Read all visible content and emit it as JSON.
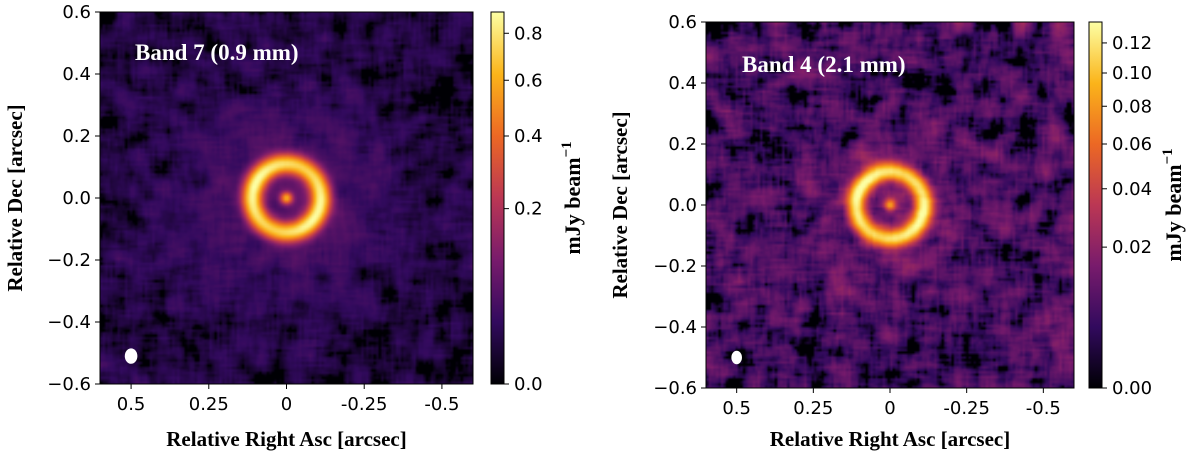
{
  "colors": {
    "cmap": [
      "#000004",
      "#320a5e",
      "#781b6c",
      "#bb3754",
      "#ec6824",
      "#fbb41a",
      "#fcffa4"
    ],
    "beam": "#ffffff"
  },
  "chart_data": [
    {
      "type": "heatmap",
      "title": "Band 7 (0.9 mm)",
      "xlabel": "Relative Right Asc [arcsec]",
      "ylabel": "Relative Dec [arcsec]",
      "xlim": [
        0.6,
        -0.6
      ],
      "ylim": [
        -0.6,
        0.6
      ],
      "xticks": [
        0.5,
        0.25,
        0,
        -0.25,
        -0.5
      ],
      "xtick_labels": [
        "0.5",
        "0.25",
        "0",
        "-0.25",
        "-0.5"
      ],
      "yticks": [
        0.6,
        0.4,
        0.2,
        0.0,
        -0.2,
        -0.4,
        -0.6
      ],
      "ytick_labels": [
        "0.6",
        "0.4",
        "0.2",
        "0.0",
        "−0.2",
        "−0.4",
        "−0.6"
      ],
      "colorbar": {
        "label": "mJy beam",
        "label_exp": "−1",
        "vmin": 0.0,
        "vmax": 0.9,
        "scale": "sqrt",
        "ticks": [
          0.0,
          0.2,
          0.4,
          0.6,
          0.8
        ],
        "tick_labels": [
          "0.0",
          "0.2",
          "0.4",
          "0.6",
          "0.8"
        ]
      },
      "ring": {
        "radius_arcsec": 0.11,
        "width_arcsec": 0.048,
        "peak": 0.85,
        "center_peak": 0.55,
        "noise_rms": 0.018
      },
      "beam": {
        "x_arcsec": 0.5,
        "y_arcsec": -0.51,
        "major_arcsec": 0.045,
        "minor_arcsec": 0.035
      }
    },
    {
      "type": "heatmap",
      "title": "Band 4 (2.1 mm)",
      "xlabel": "Relative Right Asc [arcsec]",
      "ylabel": "Relative Dec [arcsec]",
      "xlim": [
        0.6,
        -0.6
      ],
      "ylim": [
        -0.6,
        0.6
      ],
      "xticks": [
        0.5,
        0.25,
        0,
        -0.25,
        -0.5
      ],
      "xtick_labels": [
        "0.5",
        "0.25",
        "0",
        "-0.25",
        "-0.5"
      ],
      "yticks": [
        0.6,
        0.4,
        0.2,
        0.0,
        -0.2,
        -0.4,
        -0.6
      ],
      "ytick_labels": [
        "0.6",
        "0.4",
        "0.2",
        "0.0",
        "−0.2",
        "−0.4",
        "−0.6"
      ],
      "colorbar": {
        "label": "mJy beam",
        "label_exp": "−1",
        "vmin": 0.0,
        "vmax": 0.135,
        "scale": "sqrt",
        "ticks": [
          0.0,
          0.02,
          0.04,
          0.06,
          0.08,
          0.1,
          0.12
        ],
        "tick_labels": [
          "0.00",
          "0.02",
          "0.04",
          "0.06",
          "0.08",
          "0.10",
          "0.12"
        ]
      },
      "ring": {
        "radius_arcsec": 0.11,
        "width_arcsec": 0.045,
        "peak": 0.125,
        "center_peak": 0.07,
        "noise_rms": 0.009
      },
      "beam": {
        "x_arcsec": 0.5,
        "y_arcsec": -0.5,
        "major_arcsec": 0.04,
        "minor_arcsec": 0.03
      }
    }
  ]
}
